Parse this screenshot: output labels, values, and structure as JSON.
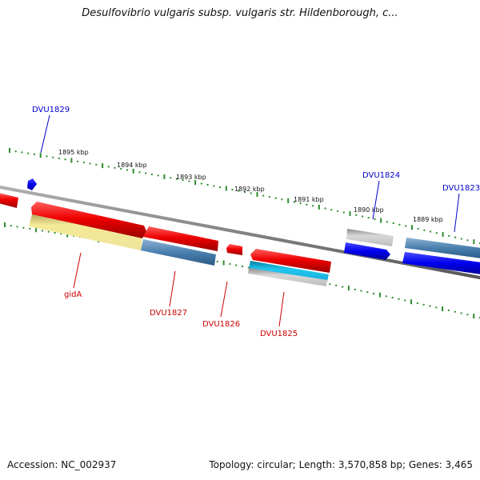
{
  "title": "Desulfovibrio vulgaris subsp. vulgaris str. Hildenborough, c...",
  "footer": {
    "accession": "Accession: NC_002937",
    "info": "Topology: circular; Length: 3,570,858 bp; Genes: 3,465"
  },
  "scale_labels": [
    "1895 kbp",
    "1894 kbp",
    "1893 kbp",
    "1892 kbp",
    "1891 kbp",
    "1890 kbp",
    "1889 kbp"
  ],
  "genes_upper": [
    "DVU1829",
    "DVU1824",
    "DVU1823"
  ],
  "genes_lower": [
    "gidA",
    "DVU1827",
    "DVU1826",
    "DVU1825"
  ],
  "colors": {
    "backbone": "#808080",
    "tick": "#2e8b2e",
    "forward_gene": "#ee0000",
    "reverse_gene": "#0000ee",
    "label_blue": "#0000cc",
    "label_red": "#cc0000"
  }
}
